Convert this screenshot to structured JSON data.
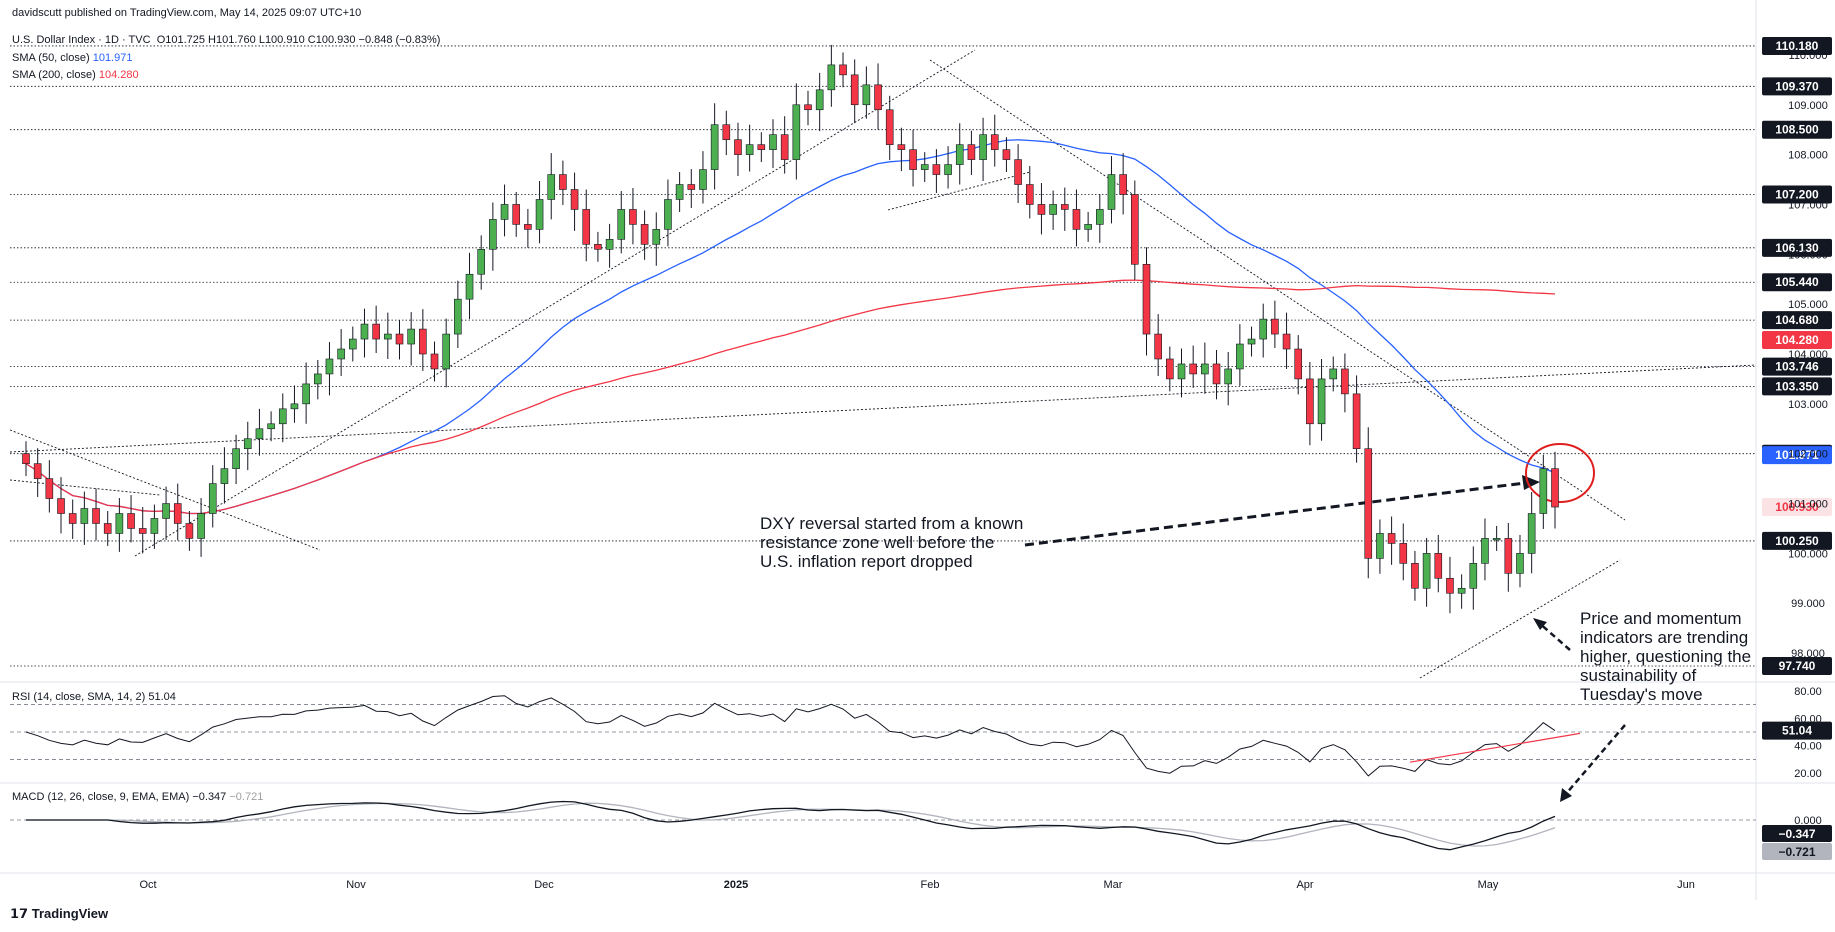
{
  "header": {
    "published": "davidscutt published on TradingView.com, May 14, 2025 09:07 UTC+10",
    "symbol": "U.S. Dollar Index · 1D · TVC",
    "ohlc": "O101.725  H101.760  L100.910  C100.930  −0.848 (−0.83%)",
    "sma50_label": "SMA (50, close)",
    "sma50_value": "101.971",
    "sma200_label": "SMA (200, close)",
    "sma200_value": "104.280"
  },
  "colors": {
    "up": "#4caf50",
    "down": "#f23645",
    "sma50": "#2962ff",
    "sma200": "#f23645",
    "circle": "#e01e1e",
    "badge_dark": "#131722"
  },
  "annotations": {
    "dxy_note": [
      "DXY reversal started from a known",
      "resistance zone well before the",
      "U.S. inflation report dropped"
    ],
    "momentum_note": [
      "Price and momentum",
      "indicators are trending",
      "higher, questioning the",
      "sustainability of",
      "Tuesday's move"
    ]
  },
  "footer": {
    "brand": "TradingView"
  },
  "chart_data": [
    {
      "type": "candlestick",
      "title": "U.S. Dollar Index · 1D · TVC",
      "x_axis": {
        "labels": [
          "Oct",
          "Nov",
          "Dec",
          "2025",
          "Feb",
          "Mar",
          "Apr",
          "May",
          "Jun"
        ]
      },
      "y_axis": {
        "ticks": [
          "110.000",
          "109.000",
          "108.000",
          "107.000",
          "106.000",
          "105.000",
          "104.000",
          "103.000",
          "102.000",
          "101.000",
          "100.000",
          "99.000",
          "98.000"
        ],
        "range": [
          97.5,
          110.5
        ]
      },
      "levels": [
        {
          "label": "110.180",
          "value": 110.18,
          "style": "dark"
        },
        {
          "label": "109.370",
          "value": 109.37,
          "style": "dark"
        },
        {
          "label": "108.500",
          "value": 108.5,
          "style": "dark"
        },
        {
          "label": "107.200",
          "value": 107.2,
          "style": "dark"
        },
        {
          "label": "106.130",
          "value": 106.13,
          "style": "dark"
        },
        {
          "label": "105.440",
          "value": 105.44,
          "style": "dark"
        },
        {
          "label": "104.680",
          "value": 104.68,
          "style": "dark"
        },
        {
          "label": "104.280",
          "value": 104.28,
          "style": "red"
        },
        {
          "label": "103.746",
          "value": 103.746,
          "style": "dark"
        },
        {
          "label": "103.350",
          "value": 103.35,
          "style": "dark"
        },
        {
          "label": "102.000",
          "value": 102.0,
          "style": "dark"
        },
        {
          "label": "101.971",
          "value": 101.971,
          "style": "blue"
        },
        {
          "label": "100.930",
          "value": 100.93,
          "style": "redtext"
        },
        {
          "label": "100.250",
          "value": 100.25,
          "style": "dark"
        },
        {
          "label": "97.740",
          "value": 97.74,
          "style": "dark"
        }
      ],
      "closes": [
        101.8,
        101.5,
        101.1,
        100.8,
        100.6,
        100.9,
        100.6,
        100.4,
        100.8,
        100.5,
        100.4,
        100.7,
        101.0,
        100.6,
        100.3,
        100.8,
        101.4,
        101.7,
        102.1,
        102.3,
        102.5,
        102.6,
        102.9,
        103.0,
        103.4,
        103.6,
        103.9,
        104.1,
        104.3,
        104.6,
        104.3,
        104.4,
        104.2,
        104.5,
        104.0,
        103.7,
        104.4,
        105.1,
        105.6,
        106.1,
        106.7,
        107.0,
        106.6,
        106.5,
        107.1,
        107.6,
        107.3,
        106.9,
        106.2,
        106.1,
        106.3,
        106.9,
        106.6,
        106.2,
        106.5,
        107.1,
        107.4,
        107.3,
        107.7,
        108.6,
        108.3,
        108.0,
        108.2,
        108.1,
        108.4,
        107.9,
        109.0,
        108.9,
        109.3,
        109.8,
        109.6,
        109.0,
        109.4,
        108.9,
        108.2,
        108.1,
        107.7,
        107.8,
        107.6,
        107.8,
        108.2,
        107.9,
        108.4,
        108.1,
        107.9,
        107.4,
        107.0,
        106.8,
        107.0,
        106.9,
        106.5,
        106.6,
        106.9,
        107.6,
        107.2,
        105.8,
        104.4,
        103.9,
        103.5,
        103.8,
        103.6,
        103.8,
        103.4,
        103.7,
        104.2,
        104.3,
        104.7,
        104.4,
        104.1,
        103.5,
        102.6,
        103.5,
        103.7,
        103.2,
        102.1,
        99.9,
        100.4,
        100.2,
        99.8,
        99.3,
        100.0,
        99.5,
        99.2,
        99.3,
        99.8,
        100.3,
        100.3,
        99.6,
        100.0,
        100.8,
        101.7,
        100.93
      ],
      "series": [
        {
          "name": "SMA (50, close)",
          "last": 101.971
        },
        {
          "name": "SMA (200, close)",
          "last": 104.28
        }
      ]
    },
    {
      "type": "line",
      "title": "RSI (14, close, SMA, 14, 2)",
      "label_text": "RSI (14, close, SMA, 14, 2)",
      "value": "51.04",
      "y_axis": {
        "ticks": [
          "80.00",
          "60.00",
          "40.00",
          "20.00"
        ],
        "range": [
          15,
          85
        ]
      },
      "reference_lines": [
        70,
        50,
        30
      ]
    },
    {
      "type": "line",
      "title": "MACD (12, 26, close, 9, EMA, EMA)",
      "label_text": "MACD (12, 26, close, 9, EMA, EMA)",
      "macd_value": "−0.347",
      "signal_value": "−0.721",
      "y_axis": {
        "ticks": [
          "0.000"
        ]
      }
    }
  ]
}
